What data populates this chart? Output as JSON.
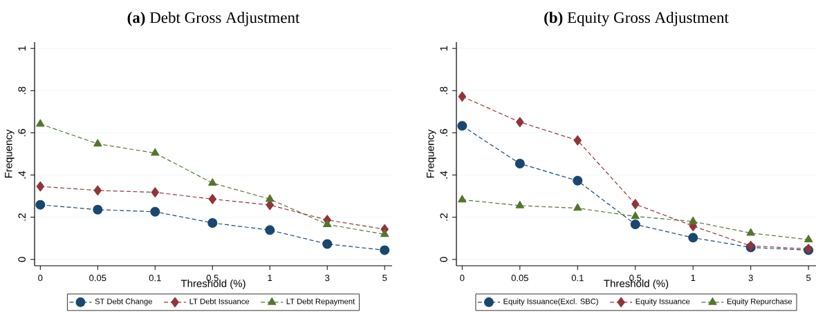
{
  "chart_data": [
    {
      "type": "line",
      "title": "**(a)** Debt Gross Adjustment",
      "xlabel": "Threshold (%)",
      "ylabel": "Frequency",
      "categories": [
        "0",
        "0.05",
        "0.1",
        "0.5",
        "1",
        "3",
        "5"
      ],
      "ylim": [
        -0.03,
        1.03
      ],
      "yticks": [
        0,
        {
          "value": 0.2,
          "label": ".2"
        },
        {
          "value": 0.4,
          "label": ".4"
        },
        {
          "value": 0.6,
          "label": ".6"
        },
        {
          "value": 0.8,
          "label": ".8"
        },
        1
      ],
      "grid": "y",
      "legend": "bottom",
      "line_style": "dashed",
      "series": [
        {
          "name": "ST Debt Change",
          "color": "#1a476f",
          "marker": "circle",
          "values": [
            0.259,
            0.236,
            0.226,
            0.173,
            0.139,
            0.073,
            0.044
          ]
        },
        {
          "name": "LT Debt Issuance",
          "color": "#90353b",
          "marker": "diamond",
          "values": [
            0.346,
            0.327,
            0.318,
            0.286,
            0.258,
            0.187,
            0.143
          ]
        },
        {
          "name": "LT Debt Repayment",
          "color": "#55752f",
          "marker": "triangle",
          "values": [
            0.642,
            0.548,
            0.504,
            0.362,
            0.286,
            0.166,
            0.119
          ]
        }
      ]
    },
    {
      "type": "line",
      "title": "**(b)** Equity Gross Adjustment",
      "xlabel": "Threshold (%)",
      "ylabel": "Frequency",
      "categories": [
        "0",
        "0.05",
        "0.1",
        "0.5",
        "1",
        "3",
        "5"
      ],
      "ylim": [
        -0.03,
        1.03
      ],
      "yticks": [
        0,
        {
          "value": 0.2,
          "label": ".2"
        },
        {
          "value": 0.4,
          "label": ".4"
        },
        {
          "value": 0.6,
          "label": ".6"
        },
        {
          "value": 0.8,
          "label": ".8"
        },
        1
      ],
      "grid": "y",
      "legend": "bottom",
      "line_style": "dashed",
      "series": [
        {
          "name": "Equity Issuance(Excl. SBC)",
          "color": "#1a476f",
          "marker": "circle",
          "values": [
            0.633,
            0.454,
            0.373,
            0.166,
            0.103,
            0.057,
            0.044
          ]
        },
        {
          "name": "Equity Issuance",
          "color": "#90353b",
          "marker": "diamond",
          "values": [
            0.772,
            0.651,
            0.564,
            0.262,
            0.158,
            0.064,
            0.05
          ]
        },
        {
          "name": "Equity Repurchase",
          "color": "#55752f",
          "marker": "triangle",
          "values": [
            0.283,
            0.255,
            0.243,
            0.204,
            0.18,
            0.125,
            0.094
          ]
        }
      ]
    }
  ]
}
